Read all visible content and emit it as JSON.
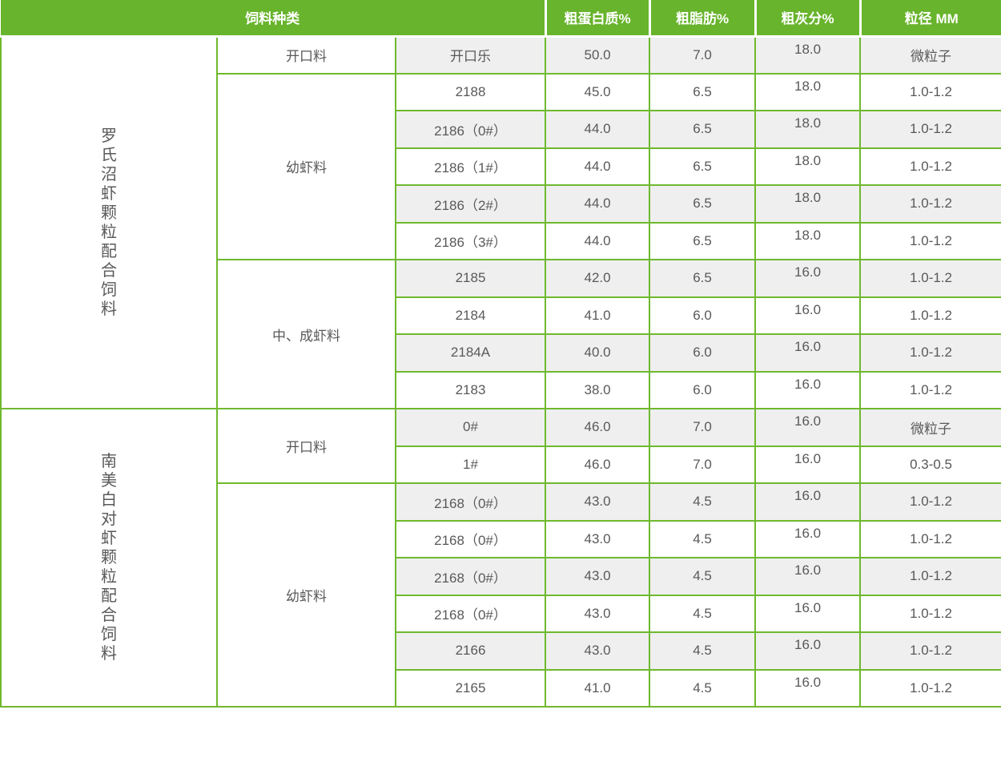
{
  "table": {
    "header": {
      "feed_type": "饲料种类",
      "crude_protein": "粗蛋白质%",
      "crude_fat": "粗脂肪%",
      "crude_ash": "粗灰分%",
      "particle_size": "粒径 MM"
    },
    "groups": [
      {
        "name": "罗氏沼虾颗粒配合饲料",
        "subgroups": [
          {
            "name": "开口料",
            "rows": [
              {
                "product": "开口乐",
                "protein": "50.0",
                "fat": "7.0",
                "ash": "18.0",
                "size": "微粒子"
              }
            ]
          },
          {
            "name": "幼虾料",
            "rows": [
              {
                "product": "2188",
                "protein": "45.0",
                "fat": "6.5",
                "ash": "18.0",
                "size": "1.0-1.2"
              },
              {
                "product": "2186（0#）",
                "protein": "44.0",
                "fat": "6.5",
                "ash": "18.0",
                "size": "1.0-1.2"
              },
              {
                "product": "2186（1#）",
                "protein": "44.0",
                "fat": "6.5",
                "ash": "18.0",
                "size": "1.0-1.2"
              },
              {
                "product": "2186（2#）",
                "protein": "44.0",
                "fat": "6.5",
                "ash": "18.0",
                "size": "1.0-1.2"
              },
              {
                "product": "2186（3#）",
                "protein": "44.0",
                "fat": "6.5",
                "ash": "18.0",
                "size": "1.0-1.2"
              }
            ]
          },
          {
            "name": "中、成虾料",
            "rows": [
              {
                "product": "2185",
                "protein": "42.0",
                "fat": "6.5",
                "ash": "16.0",
                "size": "1.0-1.2"
              },
              {
                "product": "2184",
                "protein": "41.0",
                "fat": "6.0",
                "ash": "16.0",
                "size": "1.0-1.2"
              },
              {
                "product": "2184A",
                "protein": "40.0",
                "fat": "6.0",
                "ash": "16.0",
                "size": "1.0-1.2"
              },
              {
                "product": "2183",
                "protein": "38.0",
                "fat": "6.0",
                "ash": "16.0",
                "size": "1.0-1.2"
              }
            ]
          }
        ]
      },
      {
        "name": "南美白对虾颗粒配合饲料",
        "subgroups": [
          {
            "name": "开口料",
            "rows": [
              {
                "product": "0#",
                "protein": "46.0",
                "fat": "7.0",
                "ash": "16.0",
                "size": "微粒子"
              },
              {
                "product": "1#",
                "protein": "46.0",
                "fat": "7.0",
                "ash": "16.0",
                "size": "0.3-0.5"
              }
            ]
          },
          {
            "name": "幼虾料",
            "rows": [
              {
                "product": "2168（0#）",
                "protein": "43.0",
                "fat": "4.5",
                "ash": "16.0",
                "size": "1.0-1.2"
              },
              {
                "product": "2168（0#）",
                "protein": "43.0",
                "fat": "4.5",
                "ash": "16.0",
                "size": "1.0-1.2"
              },
              {
                "product": "2168（0#）",
                "protein": "43.0",
                "fat": "4.5",
                "ash": "16.0",
                "size": "1.0-1.2"
              },
              {
                "product": "2168（0#）",
                "protein": "43.0",
                "fat": "4.5",
                "ash": "16.0",
                "size": "1.0-1.2"
              },
              {
                "product": "2166",
                "protein": "43.0",
                "fat": "4.5",
                "ash": "16.0",
                "size": "1.0-1.2"
              },
              {
                "product": "2165",
                "protein": "41.0",
                "fat": "4.5",
                "ash": "16.0",
                "size": "1.0-1.2"
              }
            ]
          }
        ]
      }
    ]
  },
  "colors": {
    "header_green": "#68b42c",
    "border_green": "#6fb92e",
    "row_gray": "#efefef",
    "text_gray": "#595959"
  }
}
